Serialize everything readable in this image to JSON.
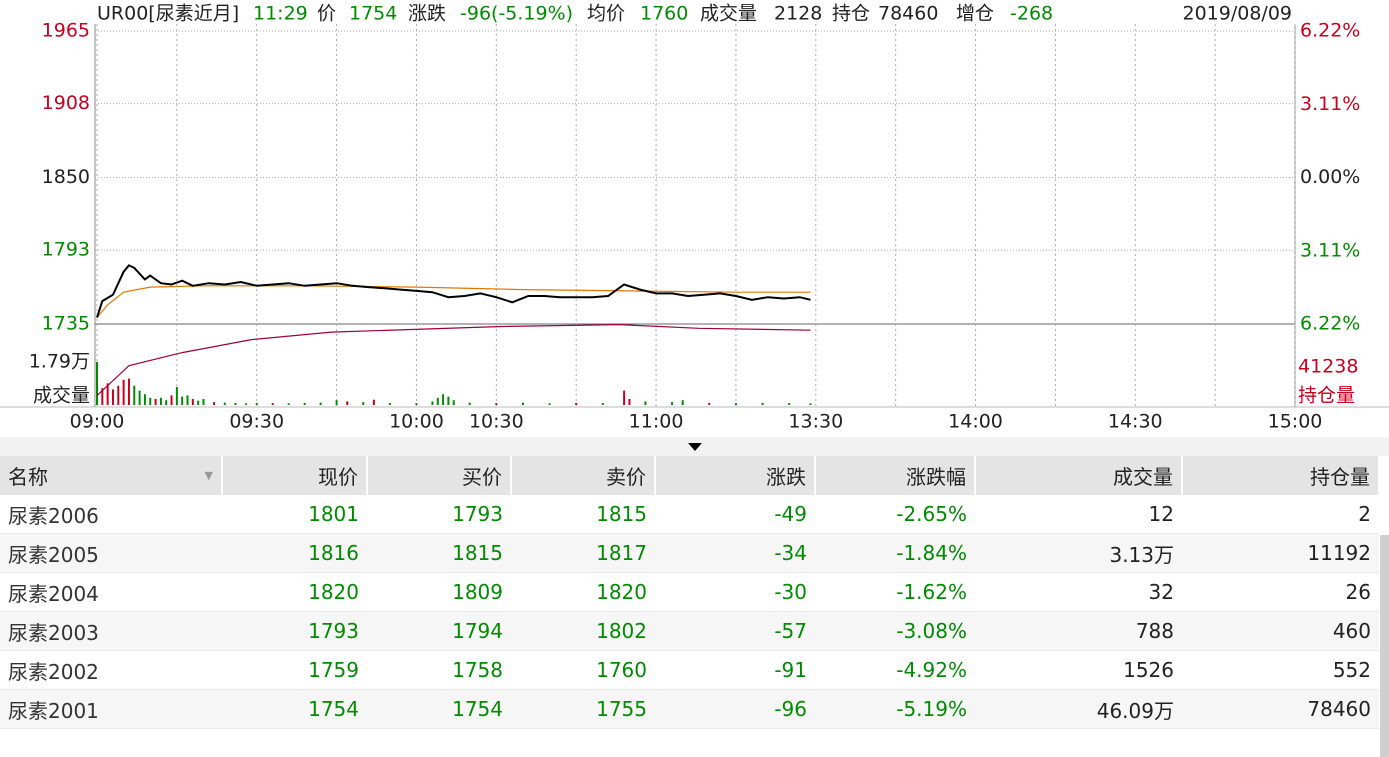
{
  "header": {
    "items": [
      "UR00[尿素近月]",
      "11:29",
      "价",
      "1754",
      "涨跌",
      "-96(-5.19%)",
      "均价",
      "1760",
      "成交量",
      "2128",
      "持仓",
      "78460",
      "增仓",
      "-268"
    ],
    "date": "2019/08/09"
  },
  "chart_data": {
    "type": "line",
    "ylim": [
      1735,
      1965
    ],
    "yticks": [
      1965,
      1908,
      1850,
      1793,
      1735
    ],
    "y2lim": [
      -6.22,
      6.22
    ],
    "y2ticks": [
      {
        "value": 6.22,
        "label": "6.22%"
      },
      {
        "value": 3.11,
        "label": "3.11%"
      },
      {
        "value": 0,
        "label": "0.00%"
      },
      {
        "value": -3.11,
        "label": "3.11%"
      },
      {
        "value": -6.22,
        "label": "6.22%"
      }
    ],
    "xlim": [
      0,
      225
    ],
    "xticks": [
      {
        "value": 0,
        "label": "09:00"
      },
      {
        "value": 30,
        "label": "09:30"
      },
      {
        "value": 60,
        "label": "10:00"
      },
      {
        "value": 75,
        "label": "10:30"
      },
      {
        "value": 105,
        "label": "11:00"
      },
      {
        "value": 135,
        "label": "13:30"
      },
      {
        "value": 165,
        "label": "14:00"
      },
      {
        "value": 195,
        "label": "14:30"
      },
      {
        "value": 225,
        "label": "15:00"
      }
    ],
    "x_minor_ticks": [
      15,
      45,
      90,
      120,
      150,
      180,
      210
    ],
    "grid": true,
    "up_color": "#c8001e",
    "down_color": "#008c00",
    "price": {
      "color": "#000000",
      "x": [
        0,
        1,
        3,
        5,
        6,
        7,
        9,
        10,
        12,
        14,
        16,
        18,
        21,
        24,
        27,
        30,
        33,
        36,
        39,
        42,
        45,
        48,
        51,
        54,
        57,
        60,
        63,
        66,
        69,
        72,
        75,
        78,
        81,
        84,
        87,
        90,
        93,
        96,
        99,
        102,
        105,
        108,
        111,
        114,
        117,
        120,
        123,
        126,
        129,
        132,
        134
      ],
      "values": [
        1740,
        1753,
        1758,
        1776,
        1781,
        1779,
        1770,
        1773,
        1767,
        1766,
        1769,
        1765,
        1767,
        1766,
        1768,
        1765,
        1766,
        1767,
        1765,
        1766,
        1767,
        1765,
        1764,
        1763,
        1762,
        1761,
        1760,
        1756,
        1757,
        1759,
        1756,
        1752,
        1757,
        1757,
        1756,
        1756,
        1756,
        1757,
        1766,
        1762,
        1759,
        1759,
        1757,
        1758,
        1759,
        1757,
        1754,
        1756,
        1755,
        1756,
        1754
      ]
    },
    "average": {
      "color": "#e07800",
      "x": [
        0,
        2,
        5,
        10,
        20,
        40,
        60,
        80,
        100,
        120,
        134
      ],
      "values": [
        1740,
        1750,
        1760,
        1764,
        1765,
        1765,
        1764,
        1762,
        1761,
        1760,
        1760
      ]
    },
    "open_interest": {
      "color": "#a0003c",
      "lim": [
        78420,
        78620
      ],
      "x": [
        0,
        6,
        16,
        29,
        44,
        76,
        98,
        113,
        134
      ],
      "values": [
        78425,
        78441,
        78448,
        78455,
        78459,
        78462,
        78463,
        78461,
        78460
      ],
      "scale_label": 41238,
      "label": "持仓量"
    },
    "volume": {
      "label": "成交量",
      "ylim": [
        0,
        17900
      ],
      "yticks": [
        {
          "value": 17900,
          "label": "1.79万"
        }
      ],
      "x": [
        0,
        1,
        2,
        3,
        4,
        5,
        6,
        7,
        8,
        9,
        10,
        11,
        12,
        13,
        14,
        15,
        16,
        17,
        18,
        19,
        20,
        22,
        24,
        26,
        28,
        30,
        33,
        36,
        39,
        42,
        45,
        47,
        50,
        52,
        55,
        60,
        63,
        64,
        65,
        66,
        67,
        70,
        75,
        80,
        85,
        90,
        95,
        99,
        100,
        103,
        108,
        110,
        115,
        120,
        125,
        130,
        134
      ],
      "values": [
        17900,
        7000,
        9000,
        6500,
        8000,
        10500,
        11000,
        8000,
        6000,
        4500,
        3000,
        2500,
        3000,
        2000,
        4000,
        7500,
        3500,
        4000,
        2500,
        1800,
        2500,
        1200,
        1000,
        800,
        700,
        900,
        800,
        700,
        900,
        1000,
        2000,
        1500,
        1200,
        2200,
        800,
        800,
        1500,
        3000,
        4500,
        3500,
        2000,
        1000,
        800,
        1000,
        700,
        900,
        800,
        6000,
        2500,
        1500,
        1200,
        2000,
        900,
        800,
        900,
        800,
        700
      ],
      "directions": [
        "down",
        "up",
        "up",
        "up",
        "up",
        "up",
        "up",
        "down",
        "down",
        "down",
        "down",
        "up",
        "down",
        "down",
        "up",
        "down",
        "down",
        "down",
        "up",
        "down",
        "down",
        "up",
        "down",
        "down",
        "down",
        "down",
        "up",
        "down",
        "down",
        "down",
        "down",
        "up",
        "down",
        "up",
        "down",
        "down",
        "down",
        "down",
        "down",
        "down",
        "down",
        "down",
        "up",
        "down",
        "down",
        "up",
        "down",
        "up",
        "up",
        "down",
        "down",
        "down",
        "up",
        "down",
        "down",
        "down",
        "down"
      ]
    }
  },
  "table": {
    "columns": [
      "名称",
      "现价",
      "买价",
      "卖价",
      "涨跌",
      "涨跌幅",
      "成交量",
      "持仓量"
    ],
    "rows": [
      [
        "尿素2006",
        "1801",
        "1793",
        "1815",
        "-49",
        "-2.65%",
        "12",
        "2"
      ],
      [
        "尿素2005",
        "1816",
        "1815",
        "1817",
        "-34",
        "-1.84%",
        "3.13万",
        "11192"
      ],
      [
        "尿素2004",
        "1820",
        "1809",
        "1820",
        "-30",
        "-1.62%",
        "32",
        "26"
      ],
      [
        "尿素2003",
        "1793",
        "1794",
        "1802",
        "-57",
        "-3.08%",
        "788",
        "460"
      ],
      [
        "尿素2002",
        "1759",
        "1758",
        "1760",
        "-91",
        "-4.92%",
        "1526",
        "552"
      ],
      [
        "尿素2001",
        "1754",
        "1754",
        "1755",
        "-96",
        "-5.19%",
        "46.09万",
        "78460"
      ]
    ]
  }
}
